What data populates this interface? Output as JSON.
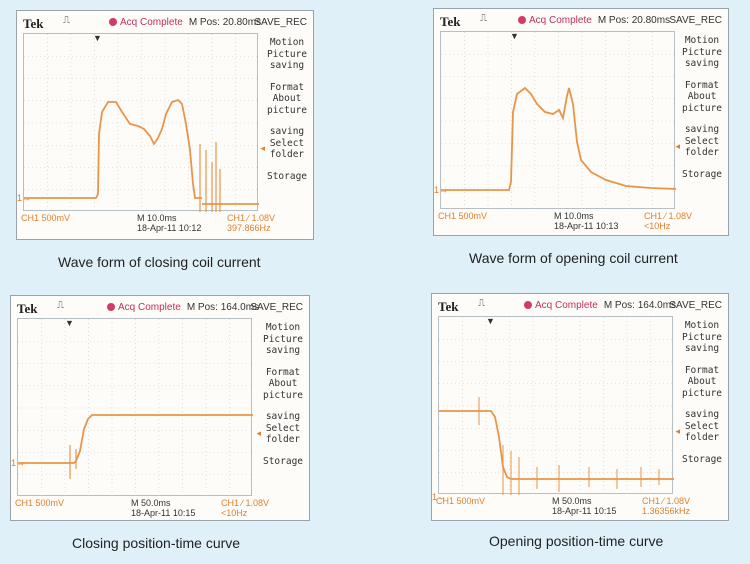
{
  "panels": [
    {
      "brand": "Tek",
      "trigger_symbol": "⎍",
      "status": "Acq Complete",
      "mpos": "M Pos: 20.80ms",
      "save_label": "SAVE_REC",
      "menu": [
        "Motion",
        "Picture",
        "saving",
        "Format",
        "About",
        "picture",
        "saving",
        "Select",
        "folder",
        "Storage"
      ],
      "ch1": "CH1  500mV",
      "timebase": "M 10.0ms",
      "datetime": "18-Apr-11 10:12",
      "trigger": "CH1  ⁄  1.08V",
      "frequency": "397.866Hz",
      "caption": "Wave form of closing coil current",
      "trace_color": "#e8954a"
    },
    {
      "brand": "Tek",
      "trigger_symbol": "⎍",
      "status": "Acq Complete",
      "mpos": "M Pos: 20.80ms",
      "save_label": "SAVE_REC",
      "menu": [
        "Motion",
        "Picture",
        "saving",
        "Format",
        "About",
        "picture",
        "saving",
        "Select",
        "folder",
        "Storage"
      ],
      "ch1": "CH1  500mV",
      "timebase": "M 10.0ms",
      "datetime": "18-Apr-11 10:13",
      "trigger": "CH1  ⁄  1.08V",
      "frequency": "<10Hz",
      "caption": "Wave form of opening coil current",
      "trace_color": "#e8954a"
    },
    {
      "brand": "Tek",
      "trigger_symbol": "⎍",
      "status": "Acq Complete",
      "mpos": "M Pos: 164.0ms",
      "save_label": "SAVE_REC",
      "menu": [
        "Motion",
        "Picture",
        "saving",
        "Format",
        "About",
        "picture",
        "saving",
        "Select",
        "folder",
        "Storage"
      ],
      "ch1": "CH1  500mV",
      "timebase": "M 50.0ms",
      "datetime": "18-Apr-11 10:15",
      "trigger": "CH1  ⁄  1.08V",
      "frequency": "<10Hz",
      "caption": "Closing position-time curve",
      "trace_color": "#e8954a"
    },
    {
      "brand": "Tek",
      "trigger_symbol": "⎍",
      "status": "Acq Complete",
      "mpos": "M Pos: 164.0ms",
      "save_label": "SAVE_REC",
      "menu": [
        "Motion",
        "Picture",
        "saving",
        "Format",
        "About",
        "picture",
        "saving",
        "Select",
        "folder",
        "Storage"
      ],
      "ch1": "CH1  500mV",
      "timebase": "M 50.0ms",
      "datetime": "18-Apr-11 10:15",
      "trigger": "CH1  ⁄  1.08V",
      "frequency": "1.36356kHz",
      "caption": "Opening position-time curve",
      "trace_color": "#e8954a"
    }
  ],
  "colors": {
    "background": "#dff0f9",
    "trace": "#e8954a",
    "status_dot": "#d23a6b"
  }
}
